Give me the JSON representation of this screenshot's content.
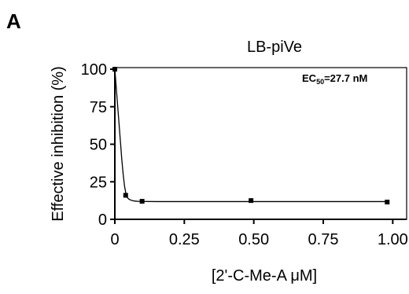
{
  "panel_label": "A",
  "chart_data": {
    "type": "scatter",
    "title": "LB-piVe",
    "xlabel": "[2'-C-Me-A μM]",
    "ylabel": "Effective inhibition (%)",
    "annotation": {
      "prefix": "EC",
      "subscript": "50",
      "suffix": "=27.7 nM"
    },
    "xlim": [
      0,
      1.05
    ],
    "ylim": [
      0,
      100
    ],
    "x_ticks": [
      0,
      0.25,
      0.5,
      0.75,
      1.0
    ],
    "x_tick_labels": [
      "0",
      "0.25",
      "0.50",
      "0.75",
      "1.00"
    ],
    "y_ticks": [
      0,
      25,
      50,
      75,
      100
    ],
    "y_tick_labels": [
      "0",
      "25",
      "50",
      "75",
      "100"
    ],
    "grid": false,
    "series": [
      {
        "x": [
          0,
          0.039,
          0.098,
          0.49,
          0.98
        ],
        "values": [
          100,
          16,
          12,
          12.5,
          11.5
        ]
      }
    ],
    "fit_curve": {
      "x": [
        0,
        0.005,
        0.01,
        0.015,
        0.02,
        0.025,
        0.03,
        0.035,
        0.04,
        0.045,
        0.05,
        0.06,
        0.07,
        0.08,
        0.1,
        0.15,
        0.25,
        0.5,
        0.75,
        0.98
      ],
      "values": [
        100,
        88,
        76,
        64,
        52,
        40,
        30,
        22,
        17,
        14.5,
        13.5,
        12.6,
        12.2,
        12.0,
        11.9,
        11.8,
        11.8,
        11.8,
        11.8,
        11.8
      ]
    }
  }
}
